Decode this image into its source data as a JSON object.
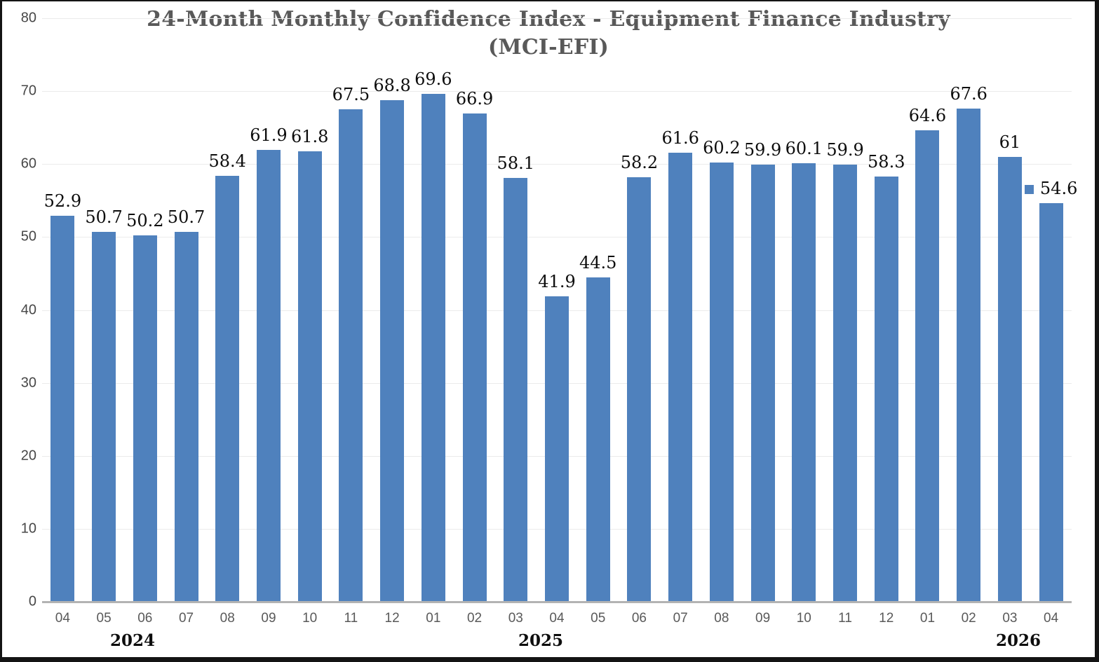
{
  "title": {
    "line1": "24-Month Monthly Confidence Index - Equipment Finance Industry",
    "line2": "(MCI-EFI)"
  },
  "chart_data": {
    "type": "bar",
    "title": "24-Month Monthly Confidence Index - Equipment Finance Industry (MCI-EFI)",
    "categories": [
      "04",
      "05",
      "06",
      "07",
      "08",
      "09",
      "10",
      "11",
      "12",
      "01",
      "02",
      "03",
      "04",
      "05",
      "06",
      "07",
      "08",
      "09",
      "10",
      "11",
      "12",
      "01",
      "02",
      "03",
      "04"
    ],
    "values": [
      52.9,
      50.7,
      50.2,
      50.7,
      58.4,
      61.9,
      61.8,
      67.5,
      68.8,
      69.6,
      66.9,
      58.1,
      41.9,
      44.5,
      58.2,
      61.6,
      60.2,
      59.9,
      60.1,
      59.9,
      58.3,
      64.6,
      67.6,
      61,
      54.6
    ],
    "year_groups": [
      "2024",
      "2025",
      "2026"
    ],
    "xlabel": "",
    "ylabel": "",
    "ylim": [
      0,
      80
    ],
    "ytick_interval": 10,
    "yticks": [
      0,
      10,
      20,
      30,
      40,
      50,
      60,
      70,
      80
    ],
    "grid": true,
    "legend_position": "none",
    "legend_key_on_last_label": true,
    "bar_color": "#4f81bd",
    "data_label_color": "#0d0d0d",
    "gridline_color": "#ebebeb",
    "axis_line_color": "#b3b3b3",
    "title_color": "#595959"
  }
}
